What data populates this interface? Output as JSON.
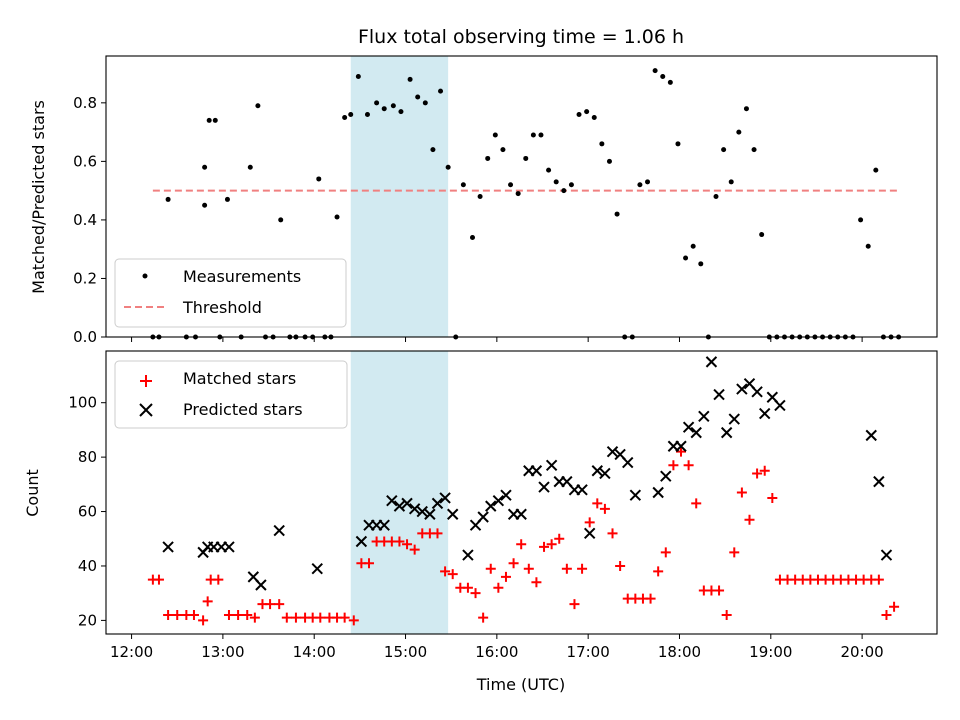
{
  "chart_data": [
    {
      "type": "scatter",
      "title": "Flux total observing time = 1.06 h",
      "xlabel": "",
      "ylabel": "Matched/Predicted stars",
      "ylim": [
        0,
        0.96
      ],
      "yticks": [
        "0.0",
        "0.2",
        "0.4",
        "0.6",
        "0.8"
      ],
      "ytick_values": [
        0,
        0.2,
        0.4,
        0.6,
        0.8
      ],
      "legend_position": "lower-left",
      "highlight_span": [
        "14:24",
        "15:28"
      ],
      "threshold": {
        "name": "Threshold",
        "value": 0.5,
        "x_range": [
          "12:14",
          "20:24"
        ],
        "color": "#f08080"
      },
      "series": [
        {
          "name": "Measurements",
          "color": "#000000",
          "x": [
            "12:14",
            "12:18",
            "12:24",
            "12:36",
            "12:42",
            "12:48",
            "12:48",
            "12:51",
            "12:55",
            "12:58",
            "13:03",
            "13:12",
            "13:18",
            "13:23",
            "13:28",
            "13:33",
            "13:38",
            "13:44",
            "13:48",
            "13:54",
            "13:59",
            "14:03",
            "14:07",
            "14:11",
            "14:15",
            "14:20",
            "14:24",
            "14:29",
            "14:35",
            "14:41",
            "14:46",
            "14:52",
            "14:57",
            "15:03",
            "15:08",
            "15:13",
            "15:18",
            "15:23",
            "15:28",
            "15:33",
            "15:38",
            "15:44",
            "15:49",
            "15:54",
            "15:59",
            "16:04",
            "16:09",
            "16:14",
            "16:19",
            "16:24",
            "16:29",
            "16:34",
            "16:39",
            "16:44",
            "16:49",
            "16:54",
            "16:59",
            "17:04",
            "17:09",
            "17:14",
            "17:19",
            "17:24",
            "17:29",
            "17:34",
            "17:39",
            "17:44",
            "17:49",
            "17:54",
            "17:59",
            "18:04",
            "18:09",
            "18:14",
            "18:19",
            "18:24",
            "18:29",
            "18:34",
            "18:39",
            "18:44",
            "18:49",
            "18:54",
            "18:59",
            "19:04",
            "19:09",
            "19:14",
            "19:19",
            "19:24",
            "19:29",
            "19:34",
            "19:39",
            "19:44",
            "19:49",
            "19:54",
            "19:59",
            "20:04",
            "20:09",
            "20:14",
            "20:19",
            "20:24"
          ],
          "y": [
            0,
            0,
            0.47,
            0,
            0,
            0.45,
            0.58,
            0.74,
            0.74,
            0,
            0.47,
            0,
            0.58,
            0.79,
            0,
            0,
            0.4,
            0,
            0,
            0,
            0,
            0.54,
            0,
            0,
            0.41,
            0.75,
            0.76,
            0.89,
            0.76,
            0.8,
            0.78,
            0.79,
            0.77,
            0.88,
            0.82,
            0.8,
            0.64,
            0.84,
            0.58,
            0,
            0.52,
            0.34,
            0.48,
            0.61,
            0.69,
            0.64,
            0.52,
            0.49,
            0.61,
            0.69,
            0.69,
            0.57,
            0.53,
            0.5,
            0.52,
            0.76,
            0.77,
            0.75,
            0.66,
            0.6,
            0.42,
            0,
            0,
            0.52,
            0.53,
            0.91,
            0.89,
            0.87,
            0.66,
            0.27,
            0.31,
            0.25,
            0,
            0.48,
            0.64,
            0.53,
            0.7,
            0.78,
            0.64,
            0.35,
            0,
            0,
            0,
            0,
            0,
            0,
            0,
            0,
            0,
            0,
            0,
            0,
            0.4,
            0.31,
            0.57,
            0,
            0,
            0
          ]
        }
      ]
    },
    {
      "type": "scatter",
      "title": "",
      "xlabel": "Time (UTC)",
      "ylabel": "Count",
      "ylim": [
        15,
        119
      ],
      "yticks": [
        "20",
        "40",
        "60",
        "80",
        "100"
      ],
      "ytick_values": [
        20,
        40,
        60,
        80,
        100
      ],
      "xticks": [
        "12:00",
        "13:00",
        "14:00",
        "15:00",
        "16:00",
        "17:00",
        "18:00",
        "19:00",
        "20:00"
      ],
      "xtick_values": [
        "12:00",
        "13:00",
        "14:00",
        "15:00",
        "16:00",
        "17:00",
        "18:00",
        "19:00",
        "20:00"
      ],
      "legend_position": "upper-left",
      "highlight_span": [
        "14:24",
        "15:28"
      ],
      "series": [
        {
          "name": "Matched stars",
          "marker": "plus",
          "color": "#ff0000",
          "x": [
            "12:14",
            "12:18",
            "12:24",
            "12:30",
            "12:36",
            "12:41",
            "12:47",
            "12:50",
            "12:52",
            "12:57",
            "13:04",
            "13:10",
            "13:16",
            "13:21",
            "13:26",
            "13:31",
            "13:37",
            "13:42",
            "13:48",
            "13:54",
            "13:59",
            "14:04",
            "14:10",
            "14:15",
            "14:20",
            "14:26",
            "14:31",
            "14:36",
            "14:41",
            "14:46",
            "14:51",
            "14:56",
            "15:01",
            "15:06",
            "15:11",
            "15:16",
            "15:21",
            "15:26",
            "15:31",
            "15:36",
            "15:41",
            "15:46",
            "15:51",
            "15:56",
            "16:01",
            "16:06",
            "16:11",
            "16:16",
            "16:21",
            "16:26",
            "16:31",
            "16:36",
            "16:41",
            "16:46",
            "16:51",
            "16:56",
            "17:01",
            "17:06",
            "17:11",
            "17:16",
            "17:21",
            "17:26",
            "17:31",
            "17:36",
            "17:41",
            "17:46",
            "17:51",
            "17:56",
            "18:01",
            "18:06",
            "18:11",
            "18:16",
            "18:21",
            "18:26",
            "18:31",
            "18:36",
            "18:41",
            "18:46",
            "18:51",
            "18:56",
            "19:01",
            "19:06",
            "19:11",
            "19:16",
            "19:21",
            "19:26",
            "19:31",
            "19:36",
            "19:41",
            "19:46",
            "19:51",
            "19:56",
            "20:01",
            "20:06",
            "20:11",
            "20:16",
            "20:21"
          ],
          "y": [
            35,
            35,
            22,
            22,
            22,
            22,
            20,
            27,
            35,
            35,
            22,
            22,
            22,
            21,
            26,
            26,
            26,
            21,
            21,
            21,
            21,
            21,
            21,
            21,
            21,
            20,
            41,
            41,
            49,
            49,
            49,
            49,
            48,
            46,
            52,
            52,
            52,
            38,
            37,
            32,
            32,
            30,
            21,
            39,
            32,
            36,
            41,
            48,
            39,
            34,
            47,
            48,
            50,
            39,
            26,
            39,
            56,
            63,
            61,
            52,
            40,
            28,
            28,
            28,
            28,
            38,
            45,
            77,
            82,
            77,
            63,
            31,
            31,
            31,
            22,
            45,
            67,
            57,
            74,
            75,
            65,
            35,
            35,
            35,
            35,
            35,
            35,
            35,
            35,
            35,
            35,
            35,
            35,
            35,
            35,
            22,
            25
          ]
        },
        {
          "name": "Predicted stars",
          "marker": "x",
          "color": "#000000",
          "x": [
            "12:24",
            "12:47",
            "12:50",
            "12:54",
            "12:59",
            "13:04",
            "13:20",
            "13:25",
            "13:37",
            "14:02",
            "14:31",
            "14:36",
            "14:41",
            "14:46",
            "14:51",
            "14:56",
            "15:01",
            "15:06",
            "15:11",
            "15:16",
            "15:21",
            "15:26",
            "15:31",
            "15:41",
            "15:46",
            "15:51",
            "15:56",
            "16:01",
            "16:06",
            "16:11",
            "16:16",
            "16:21",
            "16:26",
            "16:31",
            "16:36",
            "16:41",
            "16:46",
            "16:51",
            "16:56",
            "17:01",
            "17:06",
            "17:11",
            "17:16",
            "17:21",
            "17:26",
            "17:31",
            "17:46",
            "17:51",
            "17:56",
            "18:01",
            "18:06",
            "18:11",
            "18:16",
            "18:21",
            "18:26",
            "18:31",
            "18:36",
            "18:41",
            "18:46",
            "18:51",
            "18:56",
            "19:01",
            "19:06",
            "20:06",
            "20:11",
            "20:16"
          ],
          "y": [
            47,
            45,
            47,
            47,
            47,
            47,
            36,
            33,
            53,
            39,
            49,
            55,
            55,
            55,
            64,
            62,
            63,
            61,
            60,
            59,
            63,
            65,
            59,
            44,
            55,
            58,
            62,
            64,
            66,
            59,
            59,
            75,
            75,
            69,
            77,
            71,
            71,
            68,
            68,
            52,
            75,
            74,
            82,
            81,
            78,
            66,
            67,
            73,
            84,
            84,
            91,
            89,
            95,
            115,
            103,
            89,
            94,
            105,
            107,
            104,
            96,
            102,
            99,
            88,
            71,
            44
          ]
        }
      ]
    }
  ]
}
